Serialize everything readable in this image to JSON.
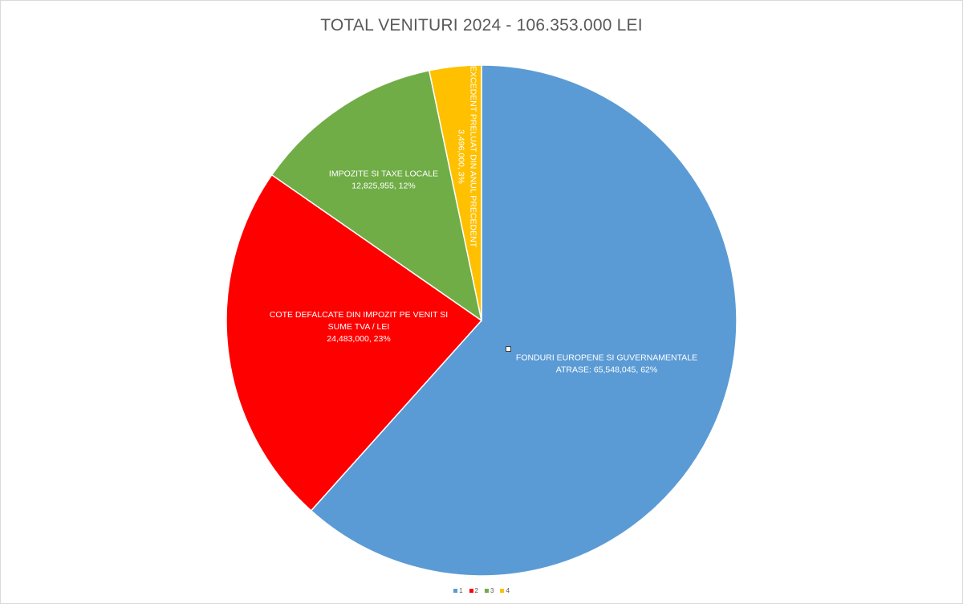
{
  "chart_data": {
    "type": "pie",
    "title": "TOTAL VENITURI 2024 - 106.353.000 LEI",
    "slices": [
      {
        "legend": "1",
        "label_lines": [
          "FONDURI EUROPENE SI GUVERNAMENTALE",
          "ATRASE:  65,548,045, 62%"
        ],
        "value": 65548045,
        "percent": "62%",
        "color": "#5b9bd5"
      },
      {
        "legend": "2",
        "label_lines": [
          "COTE DEFALCATE DIN IMPOZIT PE VENIT SI",
          "SUME TVA / LEI",
          "24,483,000, 23%"
        ],
        "value": 24483000,
        "percent": "23%",
        "color": "#ff0000"
      },
      {
        "legend": "3",
        "label_lines": [
          "IMPOZITE SI TAXE LOCALE",
          "12,825,955, 12%"
        ],
        "value": 12825955,
        "percent": "12%",
        "color": "#70ad47"
      },
      {
        "legend": "4",
        "label_lines": [
          "EXCEDENT  PRELUAT DIN ANUL  PRECEDENT",
          "3,496,000, 3%"
        ],
        "value": 3496000,
        "percent": "3%",
        "color": "#ffc000"
      }
    ],
    "legend_position": "bottom"
  }
}
